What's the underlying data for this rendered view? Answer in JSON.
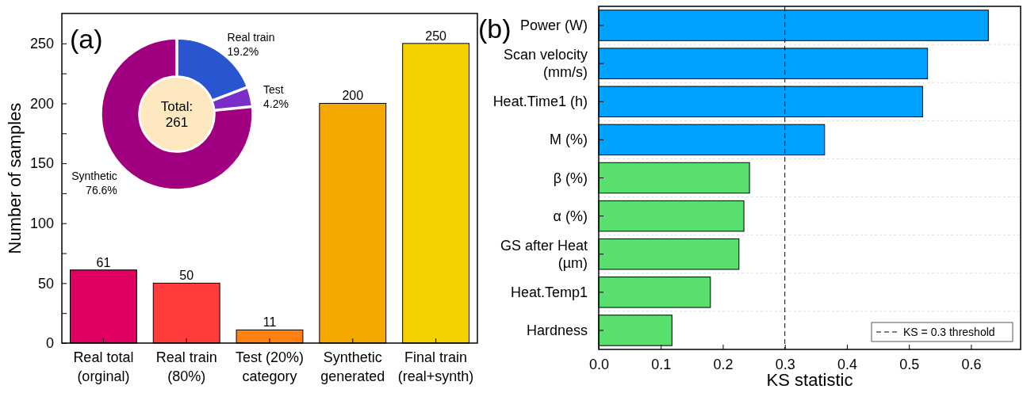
{
  "chart_data": [
    {
      "type": "bar",
      "title": "(a)",
      "ylabel": "Number of samples",
      "categories": [
        "Real total (orginal)",
        "Real train (80%)",
        "Test (20%) category",
        "Synthetic generated",
        "Final train (real+synth)"
      ],
      "values": [
        61,
        50,
        11,
        200,
        250
      ],
      "colors": [
        "#e0005f",
        "#ff3b3b",
        "#ff8010",
        "#f5a800",
        "#f5d000"
      ],
      "data_labels": true,
      "ylim": [
        0,
        275
      ],
      "yticks": [
        0,
        {
          "value": 25,
          "label": null
        },
        50,
        {
          "value": 75,
          "label": null
        },
        100,
        {
          "value": 125,
          "label": null
        },
        150,
        {
          "value": 175,
          "label": null
        },
        200,
        {
          "value": 225,
          "label": null
        },
        250
      ],
      "grid": false
    },
    {
      "type": "donut",
      "categories": [
        "Real train",
        "Test",
        "Synthetic"
      ],
      "values": [
        19.2,
        4.2,
        76.6
      ],
      "value_labels": [
        "19.2%",
        "4.2%",
        "76.6%"
      ],
      "colors": [
        "#2a55d0",
        "#7a2ec8",
        "#a0007f"
      ],
      "annotations": [
        "Total: 261"
      ]
    },
    {
      "type": "bar",
      "title": "(b)",
      "orientation": "horizontal",
      "xlabel": "KS statistic",
      "categories": [
        "Power (W)",
        "Scan velocity (mm/s)",
        "Heat.Time1 (h)",
        "M (%)",
        "β (%)",
        "α (%)",
        "GS after Heat (µm)",
        "Heat.Temp1",
        "Hardness"
      ],
      "values": [
        0.628,
        0.53,
        0.522,
        0.364,
        0.243,
        0.234,
        0.226,
        0.18,
        0.118
      ],
      "colors": [
        "#00a2ff",
        "#00a2ff",
        "#00a2ff",
        "#00a2ff",
        "#58df6e",
        "#58df6e",
        "#58df6e",
        "#58df6e",
        "#58df6e"
      ],
      "xlim": [
        0,
        0.68
      ],
      "xticks": [
        {
          "value": 0,
          "label": "0.0"
        },
        0.1,
        0.2,
        0.3,
        0.4,
        0.5,
        0.6
      ],
      "grid": "y",
      "legend": "bottom right",
      "ref_lines": [
        {
          "axis": "x",
          "value": 0.3,
          "label": "KS = 0.3 threshold",
          "line_style": "dashed",
          "color": "#000000"
        }
      ]
    }
  ]
}
